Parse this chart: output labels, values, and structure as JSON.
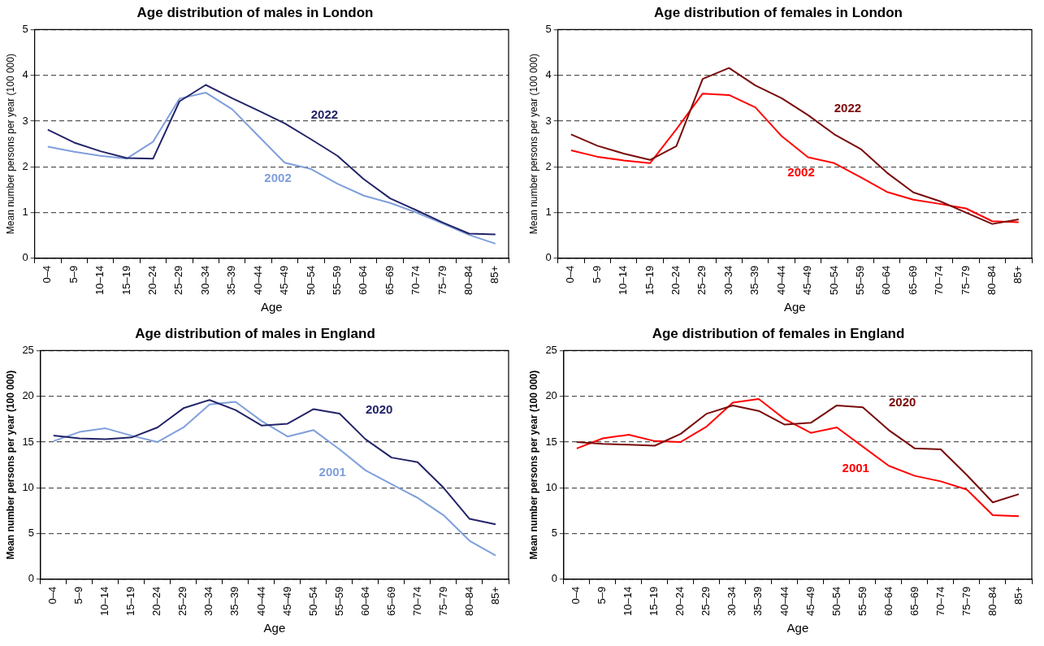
{
  "chart_data": [
    {
      "type": "line",
      "title": "Age distribution of males in London",
      "xlabel": "Age",
      "ylabel": "Mean number persons per year (100 000)",
      "categories": [
        "0–4",
        "5–9",
        "10–14",
        "15–19",
        "20–24",
        "25–29",
        "30–34",
        "35–39",
        "40–44",
        "45–49",
        "50–54",
        "55–59",
        "60–64",
        "65–69",
        "70–74",
        "75–79",
        "80–84",
        "85+"
      ],
      "series": [
        {
          "name": "2022",
          "color": "#232469",
          "values": [
            2.81,
            2.53,
            2.34,
            2.19,
            2.18,
            3.43,
            3.79,
            3.5,
            3.23,
            2.95,
            2.6,
            2.24,
            1.73,
            1.31,
            1.05,
            0.78,
            0.54,
            0.52
          ]
        },
        {
          "name": "2002",
          "color": "#7f9fdb",
          "values": [
            2.44,
            2.33,
            2.24,
            2.18,
            2.55,
            3.49,
            3.62,
            3.26,
            2.67,
            2.09,
            1.95,
            1.63,
            1.37,
            1.21,
            1.0,
            0.76,
            0.51,
            0.32
          ]
        }
      ],
      "ylim": [
        0,
        5
      ],
      "yticks": [
        0,
        1,
        2,
        3,
        4,
        5
      ],
      "grid": "y",
      "legend": false,
      "marker": "none",
      "line_style": "solid"
    },
    {
      "type": "line",
      "title": "Age distribution of females in London",
      "xlabel": "Age",
      "ylabel": "Mean number persons per year (100 000)",
      "categories": [
        "0–4",
        "5–9",
        "10–14",
        "15–19",
        "20–24",
        "25–29",
        "30–34",
        "35–39",
        "40–44",
        "45–49",
        "50–54",
        "55–59",
        "60–64",
        "65–69",
        "70–74",
        "75–79",
        "80–84",
        "85+"
      ],
      "series": [
        {
          "name": "2022",
          "color": "#7a0a0a",
          "values": [
            2.71,
            2.46,
            2.29,
            2.15,
            2.45,
            3.92,
            4.16,
            3.78,
            3.5,
            3.13,
            2.71,
            2.39,
            1.87,
            1.44,
            1.25,
            1.0,
            0.75,
            0.85
          ]
        },
        {
          "name": "2002",
          "color": "#ff0000",
          "values": [
            2.36,
            2.22,
            2.14,
            2.08,
            2.82,
            3.6,
            3.57,
            3.3,
            2.67,
            2.21,
            2.08,
            1.77,
            1.45,
            1.28,
            1.19,
            1.09,
            0.81,
            0.79
          ]
        }
      ],
      "ylim": [
        0,
        5
      ],
      "yticks": [
        0,
        1,
        2,
        3,
        4,
        5
      ],
      "grid": "y",
      "legend": false,
      "marker": "none",
      "line_style": "solid"
    },
    {
      "type": "line",
      "title": "Age distribution of males in England",
      "xlabel": "Age",
      "ylabel": "Mean number persons per year (100 000)",
      "categories": [
        "0–4",
        "5–9",
        "10–14",
        "15–19",
        "20–24",
        "25–29",
        "30–34",
        "35–39",
        "40–44",
        "45–49",
        "50–54",
        "55–59",
        "60–64",
        "65–69",
        "70–74",
        "75–79",
        "80–84",
        "85+"
      ],
      "series": [
        {
          "name": "2020",
          "color": "#232469",
          "values": [
            15.7,
            15.4,
            15.3,
            15.5,
            16.6,
            18.7,
            19.6,
            18.5,
            16.8,
            17.0,
            18.6,
            18.1,
            15.3,
            13.3,
            12.8,
            10.0,
            6.6,
            6.0
          ]
        },
        {
          "name": "2001",
          "color": "#7f9fdb",
          "values": [
            15.1,
            16.1,
            16.5,
            15.7,
            15.0,
            16.6,
            19.1,
            19.4,
            17.3,
            15.6,
            16.3,
            14.2,
            11.9,
            10.4,
            8.9,
            7.0,
            4.2,
            2.6
          ]
        }
      ],
      "ylim": [
        0,
        25
      ],
      "yticks": [
        0,
        5,
        10,
        15,
        20,
        25
      ],
      "grid": "y",
      "legend": false,
      "marker": "none",
      "line_style": "solid"
    },
    {
      "type": "line",
      "title": "Age distribution of females in England",
      "xlabel": "Age",
      "ylabel": "Mean number persons per year (100 000)",
      "categories": [
        "0–4",
        "5–9",
        "10–14",
        "15–19",
        "20–24",
        "25–29",
        "30–34",
        "35–39",
        "40–44",
        "45–49",
        "50–54",
        "55–59",
        "60–64",
        "65–69",
        "70–74",
        "75–79",
        "80–84",
        "85+"
      ],
      "series": [
        {
          "name": "2020",
          "color": "#7a0a0a",
          "values": [
            15.0,
            14.8,
            14.7,
            14.6,
            15.9,
            18.1,
            19.0,
            18.4,
            16.9,
            17.1,
            19.0,
            18.8,
            16.3,
            14.3,
            14.2,
            11.4,
            8.4,
            9.3
          ]
        },
        {
          "name": "2001",
          "color": "#ff0000",
          "values": [
            14.3,
            15.4,
            15.8,
            15.1,
            15.0,
            16.7,
            19.3,
            19.7,
            17.5,
            16.0,
            16.6,
            14.5,
            12.4,
            11.3,
            10.7,
            9.8,
            7.0,
            6.9
          ]
        }
      ],
      "ylim": [
        0,
        25
      ],
      "yticks": [
        0,
        5,
        10,
        15,
        20,
        25
      ],
      "grid": "y",
      "legend": false,
      "marker": "none",
      "line_style": "solid"
    }
  ]
}
